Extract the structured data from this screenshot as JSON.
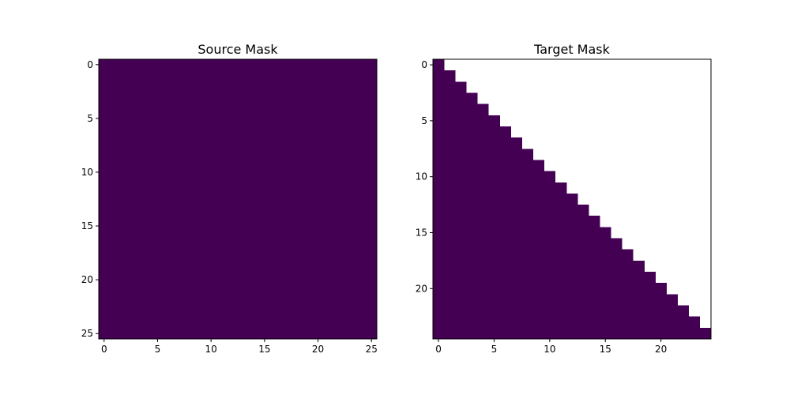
{
  "figure": {
    "background": "#ffffff"
  },
  "chart_data": [
    {
      "type": "heatmap",
      "title": "Source Mask",
      "rows": 26,
      "cols": 26,
      "pattern": "all_masked",
      "colors": {
        "masked": "#440154",
        "unmasked": "#ffffff"
      },
      "xticks": [
        0,
        5,
        10,
        15,
        20,
        25
      ],
      "yticks": [
        0,
        5,
        10,
        15,
        20,
        25
      ],
      "xlim": [
        -0.5,
        25.5
      ],
      "ylim": [
        25.5,
        -0.5
      ],
      "grid": false,
      "colorbar": false
    },
    {
      "type": "heatmap",
      "title": "Target Mask",
      "rows": 25,
      "cols": 25,
      "pattern": "lower_triangular_including_diagonal",
      "colors": {
        "masked": "#440154",
        "unmasked": "#ffffff"
      },
      "xticks": [
        0,
        5,
        10,
        15,
        20
      ],
      "yticks": [
        0,
        5,
        10,
        15,
        20
      ],
      "xlim": [
        -0.5,
        24.5
      ],
      "ylim": [
        24.5,
        -0.5
      ],
      "grid": false,
      "colorbar": false
    }
  ]
}
